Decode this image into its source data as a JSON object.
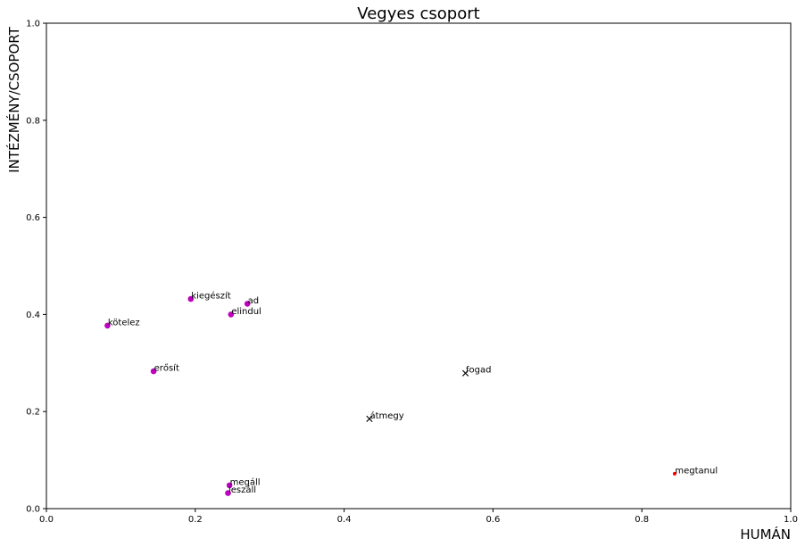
{
  "chart_data": {
    "type": "scatter",
    "title": "Vegyes csoport",
    "xlabel": "HUMÁN",
    "ylabel": "INTÉZMÉNY/CSOPORT",
    "xlim": [
      0,
      1
    ],
    "ylim": [
      0,
      1
    ],
    "xticks": [
      "0.0",
      "0.2",
      "0.4",
      "0.6",
      "0.8",
      "1.0"
    ],
    "yticks": [
      "0.0",
      "0.2",
      "0.4",
      "0.6",
      "0.8",
      "1.0"
    ],
    "grid": false,
    "colors": {
      "magenta": "#bf00bf",
      "black": "#000000",
      "red": "#ff0000"
    },
    "points": [
      {
        "label": "kiegészít",
        "x": 0.194,
        "y": 0.432,
        "marker": "circle",
        "color": "#bf00bf"
      },
      {
        "label": "ad",
        "x": 0.27,
        "y": 0.422,
        "marker": "circle",
        "color": "#bf00bf"
      },
      {
        "label": "elindul",
        "x": 0.248,
        "y": 0.4,
        "marker": "circle",
        "color": "#bf00bf"
      },
      {
        "label": "kötelez",
        "x": 0.082,
        "y": 0.377,
        "marker": "circle",
        "color": "#bf00bf"
      },
      {
        "label": "erősít",
        "x": 0.144,
        "y": 0.283,
        "marker": "circle",
        "color": "#bf00bf"
      },
      {
        "label": "megáll",
        "x": 0.246,
        "y": 0.048,
        "marker": "circle",
        "color": "#bf00bf"
      },
      {
        "label": "leszáll",
        "x": 0.244,
        "y": 0.032,
        "marker": "circle",
        "color": "#bf00bf"
      },
      {
        "label": "fogad",
        "x": 0.563,
        "y": 0.279,
        "marker": "x",
        "color": "#000000"
      },
      {
        "label": "átmegy",
        "x": 0.434,
        "y": 0.185,
        "marker": "x",
        "color": "#000000"
      },
      {
        "label": "megtanul",
        "x": 0.844,
        "y": 0.072,
        "marker": "dot",
        "color": "#ff0000"
      }
    ]
  }
}
